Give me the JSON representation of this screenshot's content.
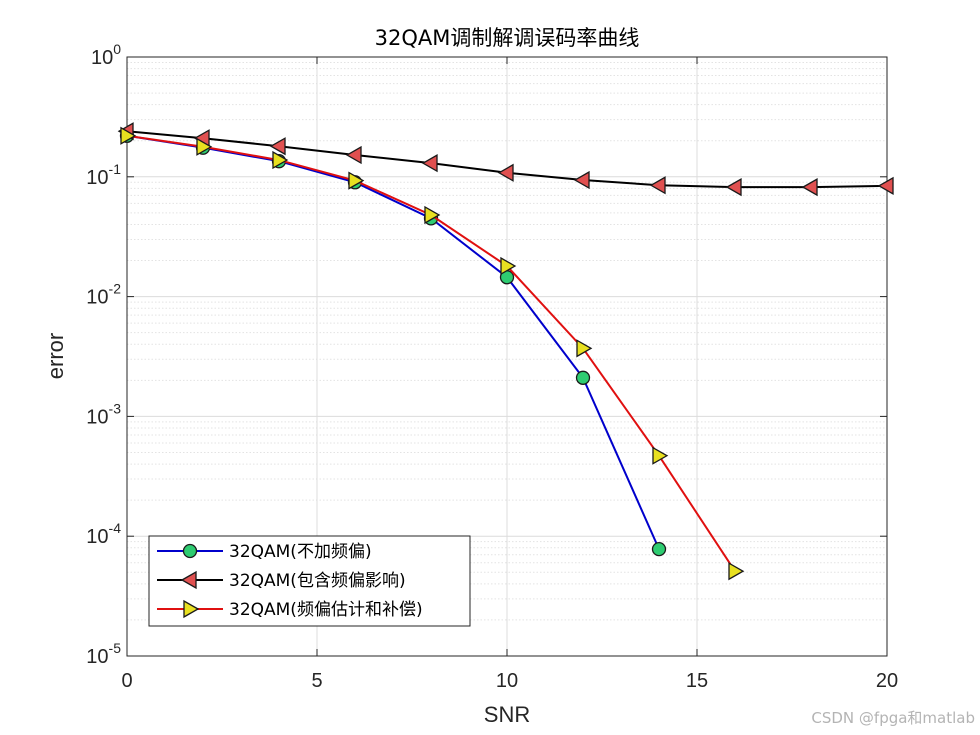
{
  "chart_data": {
    "type": "line",
    "title": "32QAM调制解调误码率曲线",
    "xlabel": "SNR",
    "ylabel": "error",
    "xlim": [
      0,
      20
    ],
    "ylim": [
      1e-05,
      1
    ],
    "yscale": "log",
    "grid": true,
    "minor_grid": true,
    "legend_position": "bottom-left",
    "x_ticks": [
      "0",
      "5",
      "10",
      "15",
      "20"
    ],
    "y_ticks": [
      {
        "base": "10",
        "exp": "0"
      },
      {
        "base": "10",
        "exp": "-1"
      },
      {
        "base": "10",
        "exp": "-2"
      },
      {
        "base": "10",
        "exp": "-3"
      },
      {
        "base": "10",
        "exp": "-4"
      },
      {
        "base": "10",
        "exp": "-5"
      }
    ],
    "series": [
      {
        "name": "32QAM(不加频偏)",
        "color": "#0000cc",
        "marker": "circle",
        "marker_fill": "#2ecc71",
        "x": [
          0,
          2,
          4,
          6,
          8,
          10,
          12,
          14
        ],
        "y": [
          0.22,
          0.175,
          0.135,
          0.09,
          0.045,
          0.0145,
          0.0021,
          7.8e-05
        ]
      },
      {
        "name": "32QAM(包含频偏影响)",
        "color": "#000000",
        "marker": "triangle-left",
        "marker_fill": "#e05050",
        "x": [
          0,
          2,
          4,
          6,
          8,
          10,
          12,
          14,
          16,
          18,
          20
        ],
        "y": [
          0.24,
          0.21,
          0.18,
          0.152,
          0.13,
          0.108,
          0.094,
          0.085,
          0.082,
          0.082,
          0.084
        ]
      },
      {
        "name": "32QAM(频偏估计和补偿)",
        "color": "#e01010",
        "marker": "triangle-right",
        "marker_fill": "#e8e020",
        "x": [
          0,
          2,
          4,
          6,
          8,
          10,
          12,
          14,
          16
        ],
        "y": [
          0.22,
          0.178,
          0.138,
          0.093,
          0.048,
          0.018,
          0.0037,
          0.00047,
          5.1e-05
        ]
      }
    ]
  },
  "watermark": "CSDN @fpga和matlab"
}
